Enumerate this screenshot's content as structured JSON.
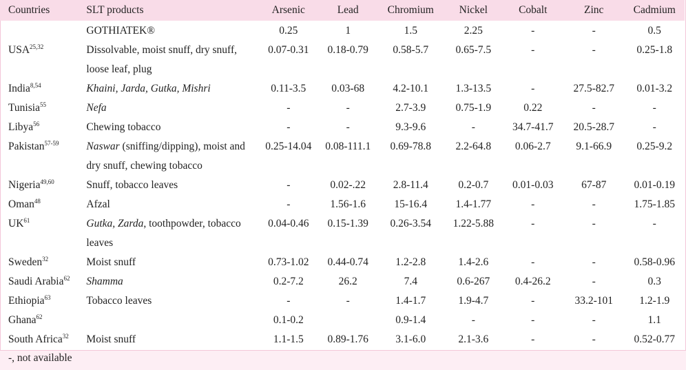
{
  "headers": [
    "Countries",
    "SLT products",
    "Arsenic",
    "Lead",
    "Chromium",
    "Nickel",
    "Cobalt",
    "Zinc",
    "Cadmium"
  ],
  "rows": [
    {
      "country": "",
      "refs": "",
      "product": [
        {
          "t": "GOTHIATEK®",
          "i": false
        }
      ],
      "centered": true,
      "values": [
        "0.25",
        "1",
        "1.5",
        "2.25",
        "-",
        "-",
        "0.5"
      ]
    },
    {
      "country": "USA",
      "refs": "25,32",
      "product": [
        {
          "t": "Dissolvable, moist snuff, dry snuff, loose leaf, plug",
          "i": false
        }
      ],
      "values": [
        "0.07-0.31",
        "0.18-0.79",
        "0.58-5.7",
        "0.65-7.5",
        "-",
        "-",
        "0.25-1.8"
      ]
    },
    {
      "country": "India",
      "refs": "8,54",
      "product": [
        {
          "t": "Khaini, Jarda, Gutka, Mishri",
          "i": true
        }
      ],
      "values": [
        "0.11-3.5",
        "0.03-68",
        "4.2-10.1",
        "1.3-13.5",
        "-",
        "27.5-82.7",
        "0.01-3.2"
      ]
    },
    {
      "country": "Tunisia",
      "refs": "55",
      "product": [
        {
          "t": "Nefa",
          "i": true
        }
      ],
      "values": [
        "-",
        "-",
        "2.7-3.9",
        "0.75-1.9",
        "0.22",
        "-",
        "-"
      ]
    },
    {
      "country": "Libya",
      "refs": "56",
      "product": [
        {
          "t": "Chewing tobacco",
          "i": false
        }
      ],
      "values": [
        "-",
        "-",
        "9.3-9.6",
        "-",
        "34.7-41.7",
        "20.5-28.7",
        "-"
      ]
    },
    {
      "country": "Pakistan",
      "refs": "57-59",
      "product": [
        {
          "t": "Naswar",
          "i": true
        },
        {
          "t": " (sniffing/dipping), moist and dry snuff, chewing tobacco",
          "i": false
        }
      ],
      "values": [
        "0.25-14.04",
        "0.08-111.1",
        "0.69-78.8",
        "2.2-64.8",
        "0.06-2.7",
        "9.1-66.9",
        "0.25-9.2"
      ]
    },
    {
      "country": "Nigeria",
      "refs": "49,60",
      "product": [
        {
          "t": "Snuff, tobacco leaves",
          "i": false
        }
      ],
      "values": [
        "-",
        "0.02-.22",
        "2.8-11.4",
        "0.2-0.7",
        "0.01-0.03",
        "67-87",
        "0.01-0.19"
      ]
    },
    {
      "country": "Oman",
      "refs": "48",
      "product": [
        {
          "t": "Afzal",
          "i": false
        }
      ],
      "values": [
        "-",
        "1.56-1.6",
        "15-16.4",
        "1.4-1.77",
        "-",
        "-",
        "1.75-1.85"
      ]
    },
    {
      "country": "UK",
      "refs": "61",
      "product": [
        {
          "t": "Gutka, Zarda",
          "i": true
        },
        {
          "t": ", toothpowder, tobacco leaves",
          "i": false
        }
      ],
      "values": [
        "0.04-0.46",
        "0.15-1.39",
        "0.26-3.54",
        "1.22-5.88",
        "-",
        "-",
        "-"
      ]
    },
    {
      "country": "Sweden",
      "refs": "32",
      "product": [
        {
          "t": "Moist snuff",
          "i": false
        }
      ],
      "values": [
        "0.73-1.02",
        "0.44-0.74",
        "1.2-2.8",
        "1.4-2.6",
        "-",
        "-",
        "0.58-0.96"
      ]
    },
    {
      "country": "Saudi Arabia",
      "refs": "62",
      "product": [
        {
          "t": "Shamma",
          "i": true
        }
      ],
      "values": [
        "0.2-7.2",
        "26.2",
        "7.4",
        "0.6-267",
        "0.4-26.2",
        "-",
        "0.3"
      ]
    },
    {
      "country": "Ethiopia",
      "refs": "63",
      "product": [
        {
          "t": "Tobacco leaves",
          "i": false
        }
      ],
      "values": [
        "-",
        "-",
        "1.4-1.7",
        "1.9-4.7",
        "-",
        "33.2-101",
        "1.2-1.9"
      ]
    },
    {
      "country": "Ghana",
      "refs": "62",
      "product": [],
      "values": [
        "0.1-0.2",
        "",
        "0.9-1.4",
        "-",
        "-",
        "-",
        "1.1"
      ]
    },
    {
      "country": "South Africa",
      "refs": "32",
      "product": [
        {
          "t": "Moist snuff",
          "i": false
        }
      ],
      "values": [
        "1.1-1.5",
        "0.89-1.76",
        "3.1-6.0",
        "2.1-3.6",
        "-",
        "-",
        "0.52-0.77"
      ]
    }
  ],
  "footnote": "-, not available"
}
